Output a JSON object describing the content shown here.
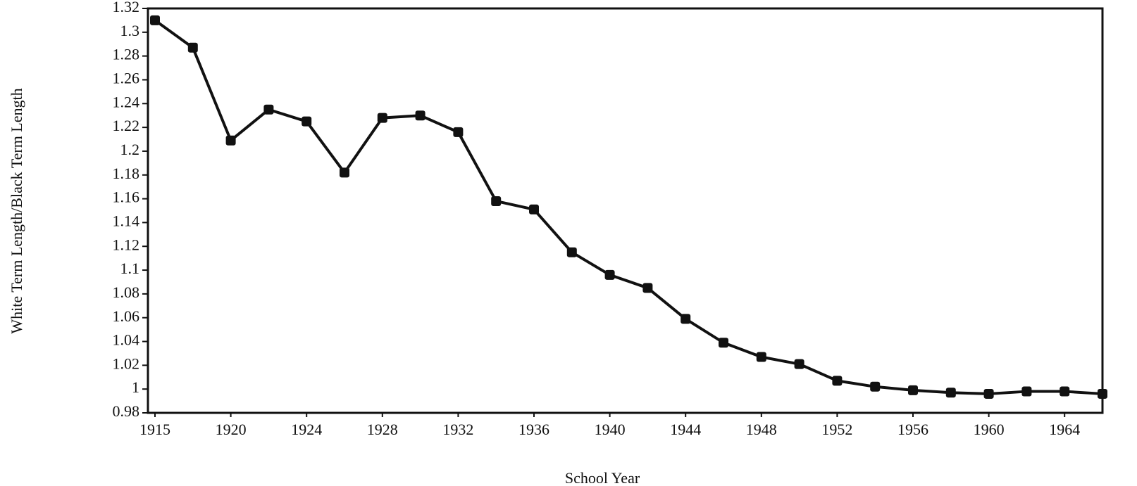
{
  "chart_data": {
    "type": "line",
    "y_label": "White Term Length/Black Term Length",
    "x_label": "School Year",
    "categories": [
      "1915",
      null,
      "1920",
      null,
      "1924",
      null,
      "1928",
      null,
      "1932",
      null,
      "1936",
      null,
      "1940",
      null,
      "1944",
      null,
      "1948",
      null,
      "1952",
      null,
      "1956",
      null,
      "1960",
      null,
      "1964",
      null
    ],
    "values": [
      1.31,
      1.287,
      1.209,
      1.235,
      1.225,
      1.182,
      1.228,
      1.23,
      1.216,
      1.158,
      1.151,
      1.115,
      1.096,
      1.085,
      1.059,
      1.039,
      1.027,
      1.021,
      1.007,
      1.002,
      0.999,
      0.997,
      0.996,
      0.998,
      0.998,
      0.996
    ],
    "color": "#111111",
    "ylim": [
      0.98,
      1.32
    ],
    "yticks": [
      0.98,
      1,
      1.02,
      1.04,
      1.06,
      1.08,
      1.1,
      1.12,
      1.14,
      1.16,
      1.18,
      1.2,
      1.22,
      1.24,
      1.26,
      1.28,
      1.3,
      1.32
    ]
  }
}
